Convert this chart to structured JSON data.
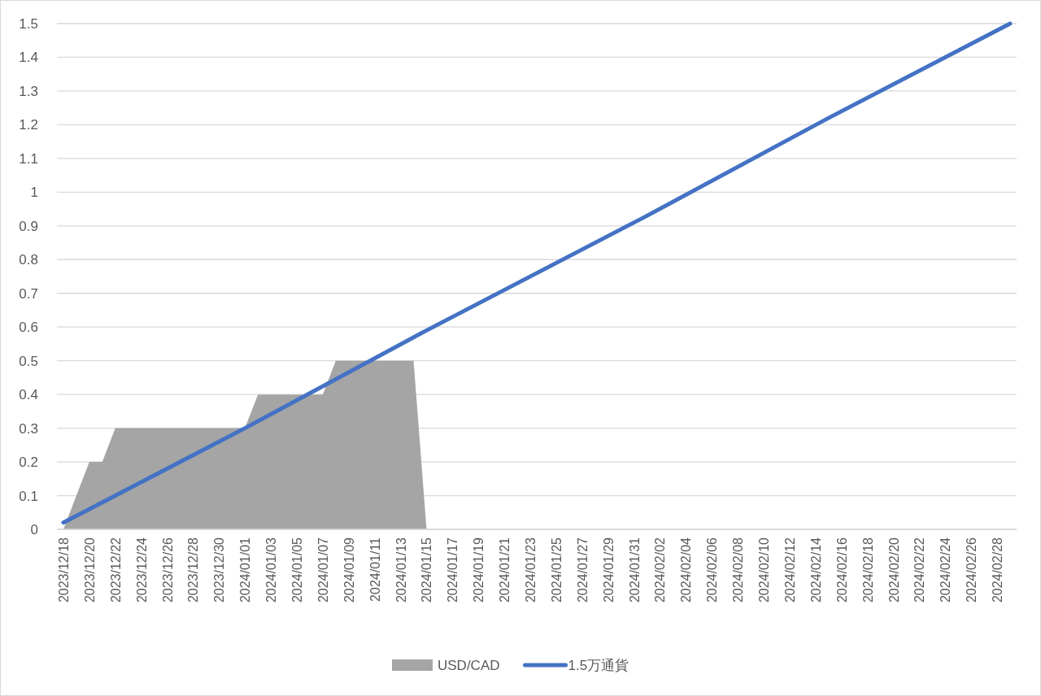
{
  "chart_data": {
    "type": "area",
    "xlim": [
      "2023-12-17T12:00",
      "2024-02-29T12:00"
    ],
    "ylim": [
      0,
      1.5
    ],
    "yticks": [
      0,
      0.1,
      0.2,
      0.3,
      0.4,
      0.5,
      0.6,
      0.7,
      0.8,
      0.9,
      1,
      1.1,
      1.2,
      1.3,
      1.4,
      1.5
    ],
    "xticks": [
      {
        "value": "2023-12-18",
        "label": "2023/12/18"
      },
      {
        "value": "2023-12-20",
        "label": "2023/12/20"
      },
      {
        "value": "2023-12-22",
        "label": "2023/12/22"
      },
      {
        "value": "2023-12-24",
        "label": "2023/12/24"
      },
      {
        "value": "2023-12-26",
        "label": "2023/12/26"
      },
      {
        "value": "2023-12-28",
        "label": "2023/12/28"
      },
      {
        "value": "2023-12-30",
        "label": "2023/12/30"
      },
      {
        "value": "2024-01-01",
        "label": "2024/01/01"
      },
      {
        "value": "2024-01-03",
        "label": "2024/01/03"
      },
      {
        "value": "2024-01-05",
        "label": "2024/01/05"
      },
      {
        "value": "2024-01-07",
        "label": "2024/01/07"
      },
      {
        "value": "2024-01-09",
        "label": "2024/01/09"
      },
      {
        "value": "2024-01-11",
        "label": "2024/01/11"
      },
      {
        "value": "2024-01-13",
        "label": "2024/01/13"
      },
      {
        "value": "2024-01-15",
        "label": "2024/01/15"
      },
      {
        "value": "2024-01-17",
        "label": "2024/01/17"
      },
      {
        "value": "2024-01-19",
        "label": "2024/01/19"
      },
      {
        "value": "2024-01-21",
        "label": "2024/01/21"
      },
      {
        "value": "2024-01-23",
        "label": "2024/01/23"
      },
      {
        "value": "2024-01-25",
        "label": "2024/01/25"
      },
      {
        "value": "2024-01-27",
        "label": "2024/01/27"
      },
      {
        "value": "2024-01-29",
        "label": "2024/01/29"
      },
      {
        "value": "2024-01-31",
        "label": "2024/01/31"
      },
      {
        "value": "2024-02-02",
        "label": "2024/02/02"
      },
      {
        "value": "2024-02-04",
        "label": "2024/02/04"
      },
      {
        "value": "2024-02-06",
        "label": "2024/02/06"
      },
      {
        "value": "2024-02-08",
        "label": "2024/02/08"
      },
      {
        "value": "2024-02-10",
        "label": "2024/02/10"
      },
      {
        "value": "2024-02-12",
        "label": "2024/02/12"
      },
      {
        "value": "2024-02-14",
        "label": "2024/02/14"
      },
      {
        "value": "2024-02-16",
        "label": "2024/02/16"
      },
      {
        "value": "2024-02-18",
        "label": "2024/02/18"
      },
      {
        "value": "2024-02-20",
        "label": "2024/02/20"
      },
      {
        "value": "2024-02-22",
        "label": "2024/02/22"
      },
      {
        "value": "2024-02-24",
        "label": "2024/02/24"
      },
      {
        "value": "2024-02-26",
        "label": "2024/02/26"
      },
      {
        "value": "2024-02-28",
        "label": "2024/02/28"
      }
    ],
    "grid": "y",
    "legend": "bottom",
    "series": [
      {
        "name": "USD/CAD",
        "color": "#a5a5a5",
        "x": [
          "2023-12-18",
          "2023-12-20",
          "2023-12-21",
          "2023-12-22",
          "2024-01-01",
          "2024-01-02",
          "2024-01-07",
          "2024-01-08",
          "2024-01-14",
          "2024-01-15"
        ],
        "values": [
          0,
          0.2,
          0.2,
          0.3,
          0.3,
          0.4,
          0.4,
          0.5,
          0.5,
          0
        ]
      },
      {
        "name": "1.5万通貨",
        "type": "line",
        "color": "#4472c4",
        "x": [
          "2023-12-18",
          "2024-01-01",
          "2024-01-15",
          "2024-02-01",
          "2024-02-15",
          "2024-02-29"
        ],
        "values": [
          0.02,
          0.3,
          0.59,
          0.93,
          1.22,
          1.5
        ]
      }
    ]
  }
}
